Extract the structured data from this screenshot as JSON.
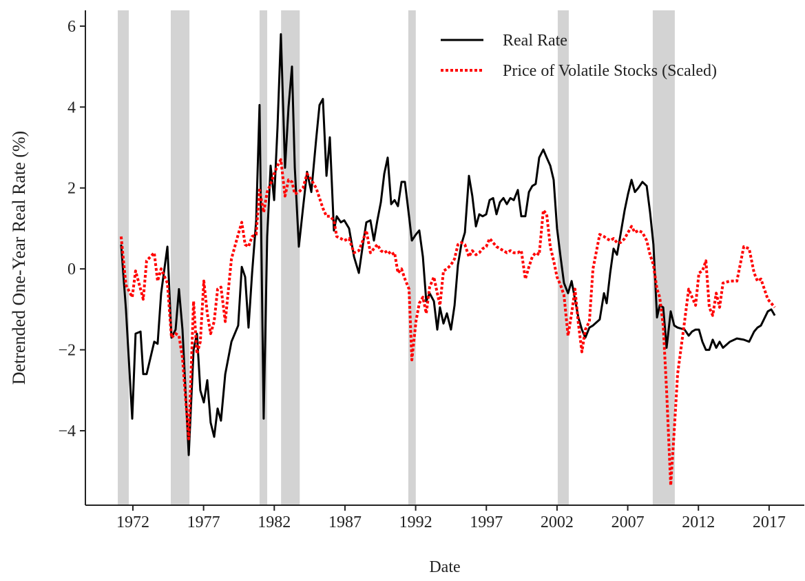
{
  "chart_data": {
    "type": "line",
    "xlabel": "Date",
    "ylabel": "Detrended One-Year Real Rate (%)",
    "xlim": [
      1968.64,
      2019.49
    ],
    "ylim": [
      -5.84,
      6.39
    ],
    "xticks": [
      1972,
      1977,
      1982,
      1987,
      1992,
      1997,
      2002,
      2007,
      2012,
      2017
    ],
    "yticks": [
      {
        "value": -4,
        "label": "−4"
      },
      {
        "value": -2,
        "label": "−2"
      },
      0,
      2,
      4,
      6
    ],
    "legend": "upper right",
    "recession_color": "#d3d3d3",
    "recessions": [
      [
        1970.93,
        1971.71
      ],
      [
        1974.68,
        1976.0
      ],
      [
        1980.96,
        1981.5
      ],
      [
        1982.48,
        1983.8
      ],
      [
        1991.48,
        1992.01
      ],
      [
        2002.05,
        2002.83
      ],
      [
        2008.77,
        2010.33
      ]
    ],
    "x": [
      1971.17,
      1971.51,
      1971.95,
      1972.19,
      1972.54,
      1972.73,
      1972.97,
      1973.51,
      1973.75,
      1974.0,
      1974.44,
      1974.73,
      1975.02,
      1975.26,
      1975.51,
      1975.95,
      1976.29,
      1976.53,
      1976.77,
      1977.02,
      1977.26,
      1977.5,
      1977.75,
      1977.99,
      1978.23,
      1978.53,
      1978.97,
      1979.45,
      1979.7,
      1979.94,
      1980.18,
      1980.43,
      1980.72,
      1980.96,
      1981.25,
      1981.5,
      1981.74,
      1981.99,
      1982.23,
      1982.47,
      1982.76,
      1983.01,
      1983.25,
      1983.45,
      1983.74,
      1984.03,
      1984.32,
      1984.62,
      1984.96,
      1985.2,
      1985.44,
      1985.69,
      1985.93,
      1986.22,
      1986.42,
      1986.71,
      1986.95,
      1987.29,
      1987.64,
      1987.98,
      1988.27,
      1988.51,
      1988.8,
      1989.05,
      1989.29,
      1989.54,
      1989.78,
      1990.02,
      1990.27,
      1990.51,
      1990.75,
      1991.0,
      1991.24,
      1991.53,
      1991.73,
      1992.02,
      1992.26,
      1992.51,
      1992.75,
      1992.99,
      1993.29,
      1993.53,
      1993.72,
      1993.97,
      1994.21,
      1994.5,
      1994.75,
      1994.99,
      1995.23,
      1995.48,
      1995.77,
      1996.01,
      1996.26,
      1996.5,
      1996.74,
      1996.99,
      1997.23,
      1997.48,
      1997.72,
      1997.96,
      1998.21,
      1998.45,
      1998.7,
      1998.94,
      1999.23,
      1999.47,
      1999.76,
      2000.01,
      2000.25,
      2000.49,
      2000.74,
      2001.03,
      2001.27,
      2001.52,
      2001.76,
      2002.0,
      2002.25,
      2002.49,
      2002.78,
      2003.03,
      2003.27,
      2003.51,
      2003.76,
      2004.0,
      2004.29,
      2004.54,
      2005.02,
      2005.32,
      2005.51,
      2005.76,
      2006.0,
      2006.24,
      2006.49,
      2006.78,
      2007.02,
      2007.27,
      2007.51,
      2007.75,
      2008.04,
      2008.34,
      2008.58,
      2008.82,
      2009.07,
      2009.26,
      2009.51,
      2009.75,
      2010.04,
      2010.29,
      2010.53,
      2011.02,
      2011.31,
      2011.55,
      2011.8,
      2012.04,
      2012.28,
      2012.53,
      2012.77,
      2013.01,
      2013.26,
      2013.5,
      2013.74,
      2014.23,
      2014.72,
      2015.21,
      2015.59,
      2015.94,
      2016.18,
      2016.42,
      2016.91,
      2017.15,
      2017.4
    ],
    "series": [
      {
        "name": "Real Rate",
        "color": "#000000",
        "style": "solid",
        "values": [
          0.6,
          -1,
          -3.7,
          -1.6,
          -1.55,
          -2.6,
          -2.6,
          -1.8,
          -1.85,
          -0.6,
          0.55,
          -1.7,
          -1.5,
          -0.5,
          -1.5,
          -4.6,
          -2.0,
          -1.6,
          -3.0,
          -3.3,
          -2.75,
          -3.8,
          -4.15,
          -3.45,
          -3.75,
          -2.6,
          -1.8,
          -1.4,
          0.05,
          -0.2,
          -1.45,
          -0.1,
          1.2,
          4.05,
          -3.7,
          0.8,
          2.55,
          1.7,
          3.5,
          5.8,
          2.5,
          4.0,
          5.0,
          2.5,
          0.55,
          1.5,
          2.4,
          1.9,
          3.2,
          4.05,
          4.2,
          2.3,
          3.25,
          0.95,
          1.3,
          1.15,
          1.2,
          1.0,
          0.3,
          -0.1,
          0.6,
          1.15,
          1.2,
          0.7,
          1.2,
          1.65,
          2.35,
          2.75,
          1.6,
          1.7,
          1.55,
          2.15,
          2.15,
          1.3,
          0.7,
          0.85,
          0.95,
          0.3,
          -0.8,
          -0.6,
          -0.8,
          -1.5,
          -0.95,
          -1.35,
          -1.1,
          -1.5,
          -0.9,
          0.1,
          0.6,
          0.9,
          2.3,
          1.8,
          1.05,
          1.35,
          1.3,
          1.35,
          1.7,
          1.75,
          1.35,
          1.65,
          1.75,
          1.6,
          1.75,
          1.7,
          1.95,
          1.3,
          1.3,
          1.9,
          2.05,
          2.1,
          2.75,
          2.95,
          2.75,
          2.55,
          2.2,
          1.0,
          0.3,
          -0.35,
          -0.6,
          -0.3,
          -0.75,
          -1.2,
          -1.5,
          -1.7,
          -1.45,
          -1.4,
          -1.25,
          -0.6,
          -0.85,
          -0.1,
          0.5,
          0.35,
          0.85,
          1.45,
          1.85,
          2.2,
          1.9,
          2.0,
          2.15,
          2.05,
          1.4,
          0.6,
          -1.2,
          -0.9,
          -0.95,
          -1.95,
          -1.05,
          -1.4,
          -1.45,
          -1.5,
          -1.65,
          -1.55,
          -1.5,
          -1.5,
          -1.8,
          -2.0,
          -2.0,
          -1.75,
          -1.95,
          -1.8,
          -1.95,
          -1.8,
          -1.72,
          -1.75,
          -1.8,
          -1.55,
          -1.45,
          -1.4,
          -1.05,
          -1.0,
          -1.15
        ]
      },
      {
        "name": "Price of Volatile Stocks (Scaled)",
        "color": "#ff0000",
        "style": "dotted",
        "values": [
          0.8,
          -0.4,
          -0.7,
          -0.05,
          -0.5,
          -0.75,
          0.2,
          0.4,
          -0.3,
          0.0,
          -0.35,
          -1.7,
          -1.6,
          -1.65,
          -2.2,
          -4.2,
          -0.8,
          -2.1,
          -1.8,
          -0.3,
          -1.1,
          -1.6,
          -1.3,
          -0.5,
          -0.45,
          -1.3,
          0.25,
          0.85,
          1.15,
          0.6,
          0.55,
          0.8,
          0.85,
          1.95,
          1.4,
          1.9,
          2.1,
          2.35,
          2.55,
          2.7,
          1.8,
          2.2,
          2.15,
          1.85,
          1.9,
          2.0,
          2.35,
          2.2,
          2.0,
          1.75,
          1.5,
          1.3,
          1.3,
          1.2,
          0.8,
          0.75,
          0.7,
          0.75,
          0.4,
          0.45,
          0.7,
          0.95,
          0.4,
          0.5,
          0.6,
          0.45,
          0.4,
          0.45,
          0.35,
          0.4,
          -0.1,
          0.0,
          -0.25,
          -0.5,
          -2.25,
          -1.3,
          -0.85,
          -0.7,
          -1.1,
          -0.45,
          -0.2,
          -0.6,
          -0.9,
          -0.05,
          0.0,
          0.1,
          0.25,
          0.6,
          0.65,
          0.6,
          0.3,
          0.45,
          0.35,
          0.4,
          0.5,
          0.55,
          0.75,
          0.65,
          0.55,
          0.5,
          0.45,
          0.4,
          0.45,
          0.4,
          0.4,
          0.45,
          -0.25,
          0.05,
          0.3,
          0.4,
          0.35,
          1.45,
          1.35,
          0.55,
          0.2,
          -0.2,
          -0.4,
          -0.65,
          -1.65,
          -1.1,
          -0.5,
          -1.35,
          -2.05,
          -1.5,
          -1.3,
          0.0,
          0.85,
          0.8,
          0.75,
          0.7,
          0.75,
          0.65,
          0.65,
          0.75,
          0.9,
          1.05,
          0.9,
          0.95,
          0.9,
          0.7,
          0.35,
          0.1,
          -0.5,
          -0.7,
          -1.4,
          -3.0,
          -5.35,
          -4.0,
          -2.6,
          -1.3,
          -0.5,
          -0.7,
          -0.9,
          -0.1,
          -0.05,
          0.2,
          -0.95,
          -1.15,
          -0.6,
          -0.95,
          -0.35,
          -0.3,
          -0.3,
          0.55,
          0.5,
          -0.1,
          -0.3,
          -0.25,
          -0.75,
          -0.85,
          -0.95
        ]
      }
    ]
  }
}
